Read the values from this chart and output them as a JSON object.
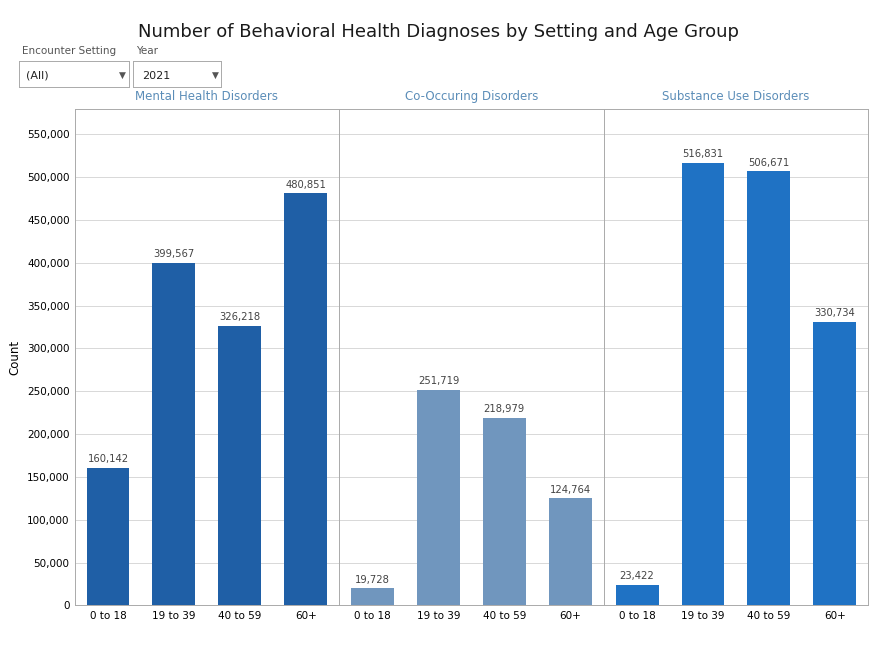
{
  "title": "Number of Behavioral Health Diagnoses by Setting and Age Group",
  "groups": [
    {
      "label": "Mental Health Disorders",
      "color": "#1F5FA6",
      "ages": [
        "0 to 18",
        "19 to 39",
        "40 to 59",
        "60+"
      ],
      "values": [
        160142,
        399567,
        326218,
        480851
      ]
    },
    {
      "label": "Co-Occuring Disorders",
      "color": "#7096BE",
      "ages": [
        "0 to 18",
        "19 to 39",
        "40 to 59",
        "60+"
      ],
      "values": [
        19728,
        251719,
        218979,
        124764
      ]
    },
    {
      "label": "Substance Use Disorders",
      "color": "#1F72C4",
      "ages": [
        "0 to 18",
        "19 to 39",
        "40 to 59",
        "60+"
      ],
      "values": [
        23422,
        516831,
        506671,
        330734
      ]
    }
  ],
  "ylabel": "Count",
  "ylim": [
    0,
    580000
  ],
  "yticks": [
    0,
    50000,
    100000,
    150000,
    200000,
    250000,
    300000,
    350000,
    400000,
    450000,
    500000,
    550000
  ],
  "ytick_labels": [
    "0",
    "50,000",
    "100,000",
    "150,000",
    "200,000",
    "250,000",
    "300,000",
    "350,000",
    "400,000",
    "450,000",
    "500,000",
    "550,000"
  ],
  "background_color": "#FFFFFF",
  "panel_bg": "#FFFFFF",
  "grid_color": "#D8D8D8",
  "bar_width": 0.65,
  "group_label_color": "#5B8DB8",
  "group_label_fontsize": 8.5,
  "value_label_fontsize": 7.2,
  "value_label_color": "#444444",
  "axis_label_fontsize": 8.5,
  "title_fontsize": 13,
  "tick_fontsize": 7.5,
  "encounter_setting_label": "Encounter Setting",
  "encounter_setting_value": "(All)",
  "year_label": "Year",
  "year_value": "2021",
  "divider_color": "#BBBBBB",
  "spine_color": "#AAAAAA"
}
